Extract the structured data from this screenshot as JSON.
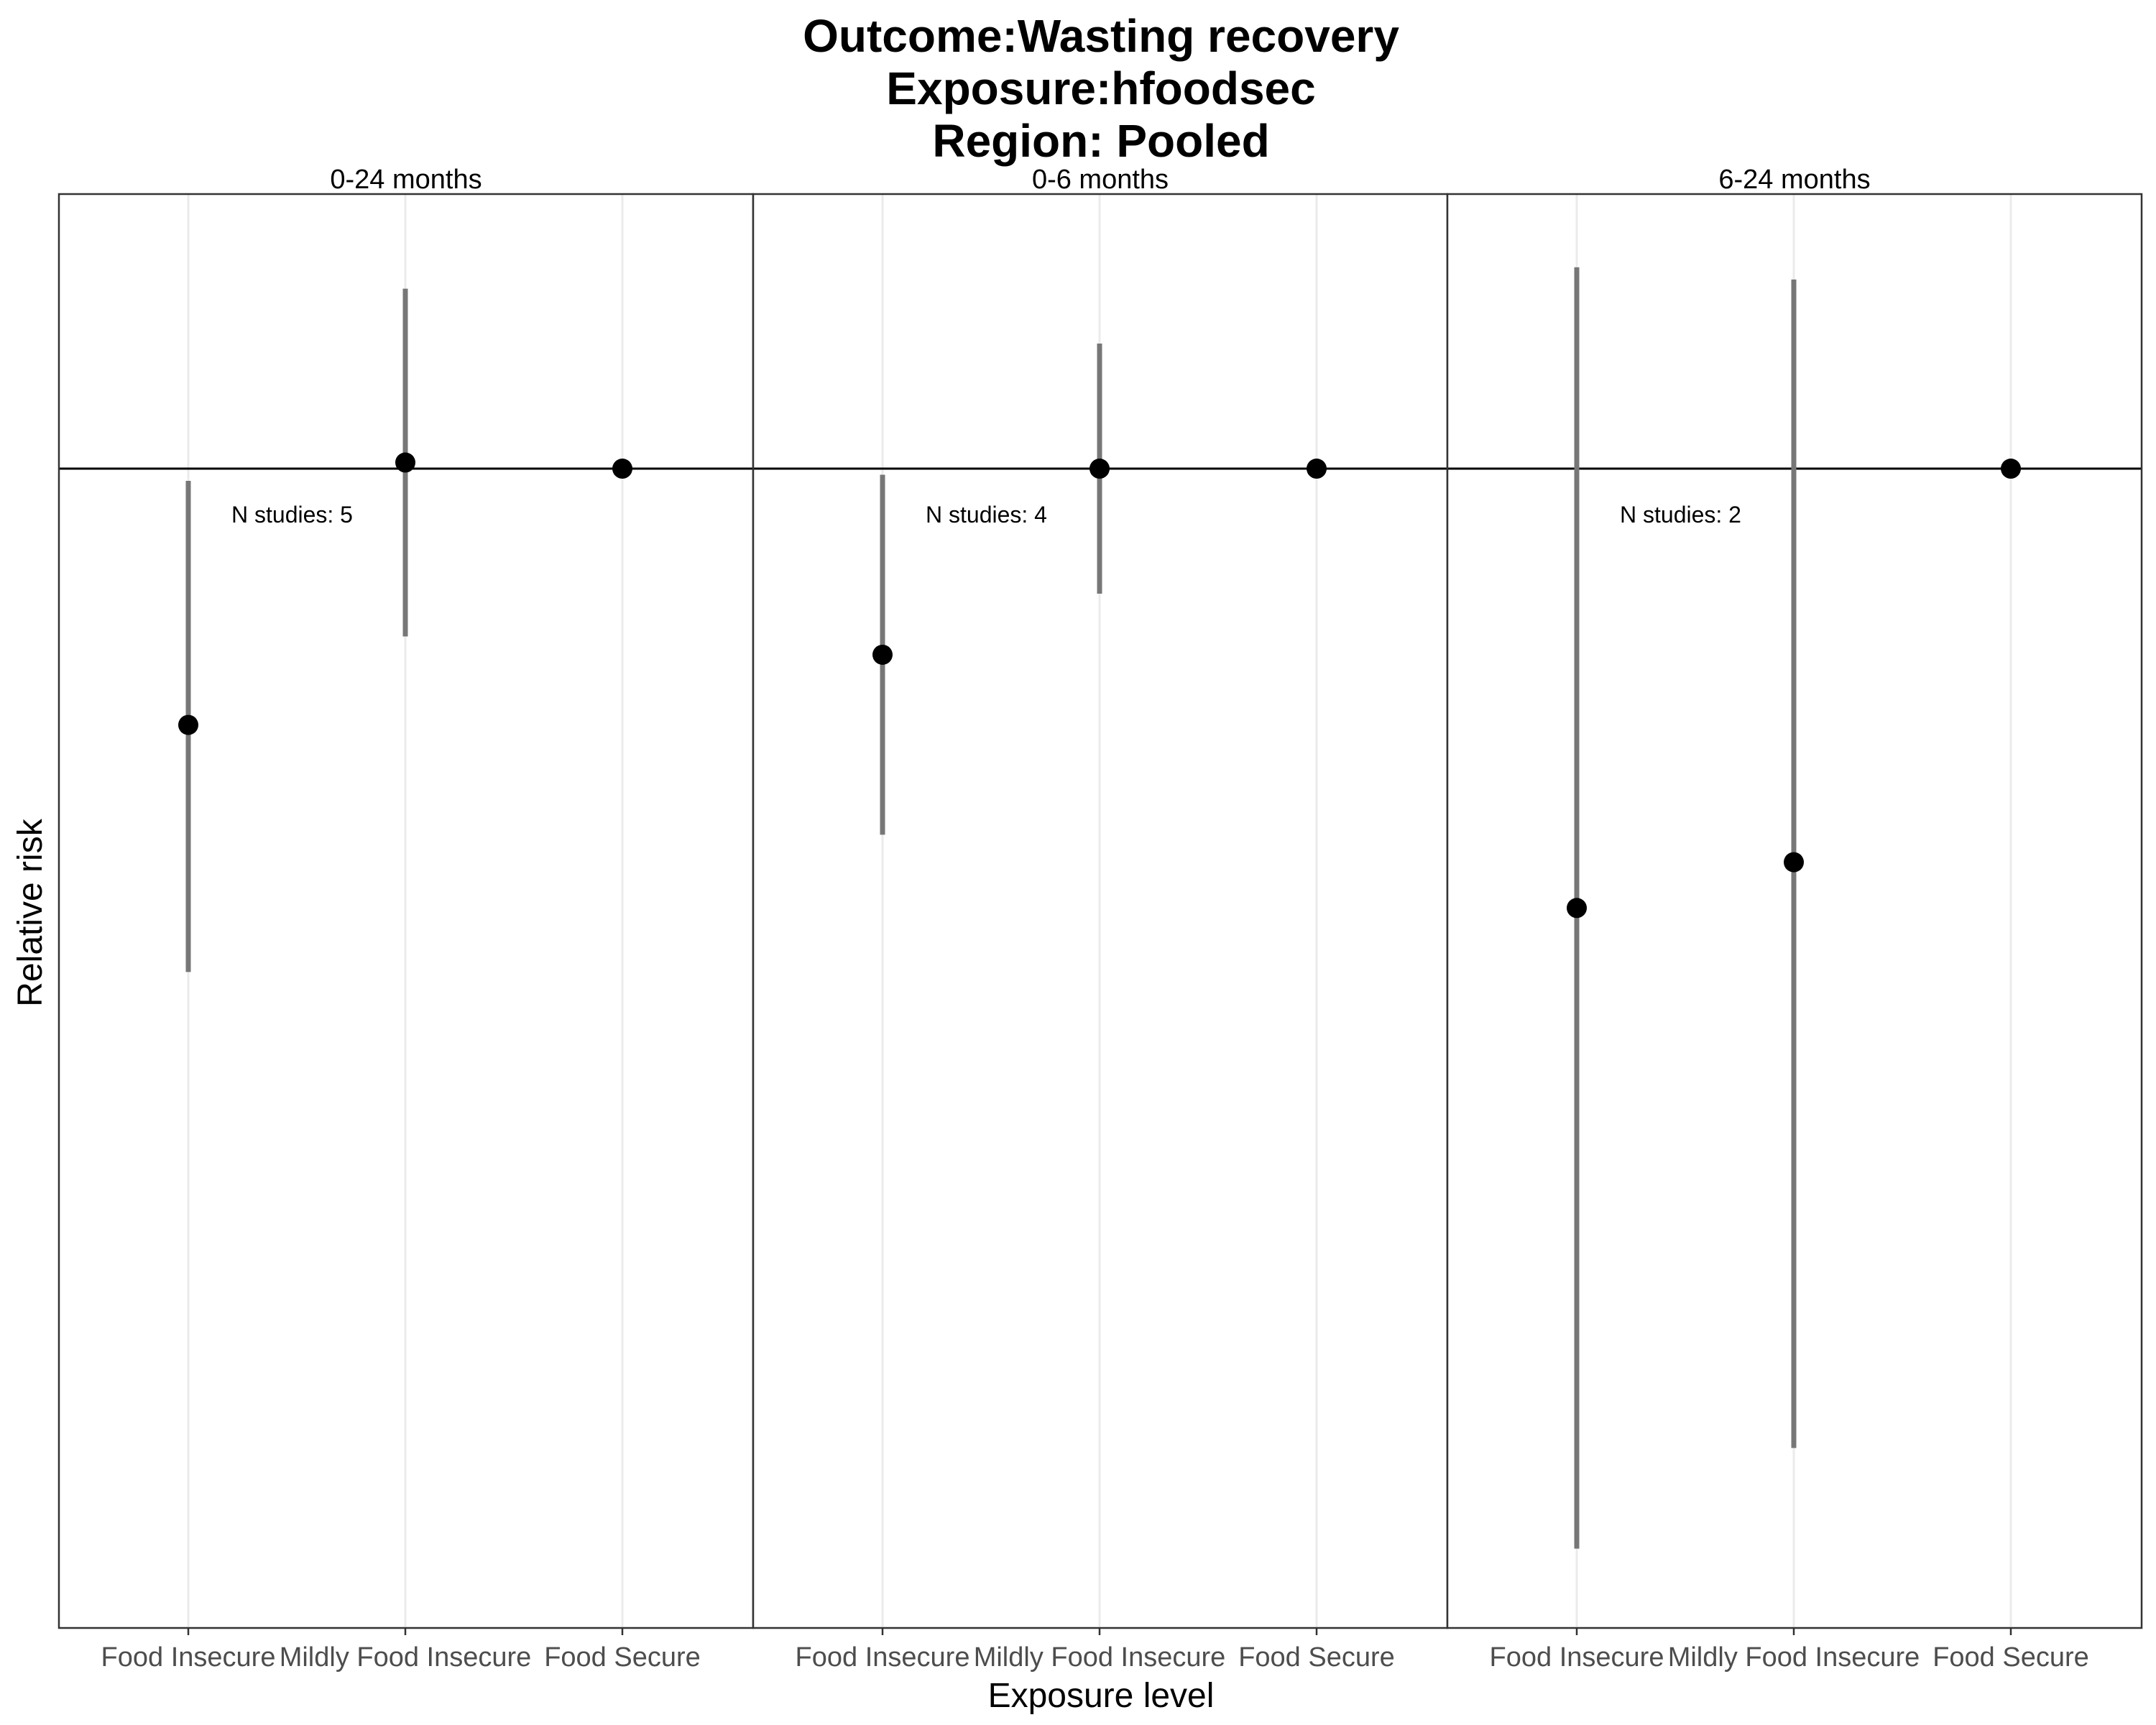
{
  "chart_data": {
    "type": "scatter",
    "title_lines": [
      "Outcome:Wasting recovery",
      "Exposure:hfoodsec",
      "Region: Pooled"
    ],
    "xlabel": "Exposure level",
    "ylabel": "Relative risk",
    "categories": [
      "Food Insecure",
      "Mildly Food Insecure",
      "Food Secure"
    ],
    "reference_line": 1.0,
    "ylim": [
      0.62,
      1.09
    ],
    "y_tick_labels_shown": false,
    "grid": "vertical major lines only",
    "colors": {
      "point": "#000000",
      "ci": "#777777",
      "grid": "#ebebeb",
      "panel_border": "#333333"
    },
    "panels": [
      {
        "strip": "0-24 months",
        "annotation": "N studies: 5",
        "points": [
          {
            "category": "Food Insecure",
            "estimate": 0.916,
            "ci_lower": 0.835,
            "ci_upper": 0.996
          },
          {
            "category": "Mildly Food Insecure",
            "estimate": 1.002,
            "ci_lower": 0.945,
            "ci_upper": 1.059
          },
          {
            "category": "Food Secure",
            "estimate": 1.0,
            "ci_lower": null,
            "ci_upper": null
          }
        ]
      },
      {
        "strip": "0-6 months",
        "annotation": "N studies: 4",
        "points": [
          {
            "category": "Food Insecure",
            "estimate": 0.939,
            "ci_lower": 0.88,
            "ci_upper": 0.998
          },
          {
            "category": "Mildly Food Insecure",
            "estimate": 1.0,
            "ci_lower": 0.959,
            "ci_upper": 1.041
          },
          {
            "category": "Food Secure",
            "estimate": 1.0,
            "ci_lower": null,
            "ci_upper": null
          }
        ]
      },
      {
        "strip": "6-24 months",
        "annotation": "N studies: 2",
        "points": [
          {
            "category": "Food Insecure",
            "estimate": 0.856,
            "ci_lower": 0.646,
            "ci_upper": 1.066
          },
          {
            "category": "Mildly Food Insecure",
            "estimate": 0.871,
            "ci_lower": 0.679,
            "ci_upper": 1.062
          },
          {
            "category": "Food Secure",
            "estimate": 1.0,
            "ci_lower": null,
            "ci_upper": null
          }
        ]
      }
    ]
  }
}
